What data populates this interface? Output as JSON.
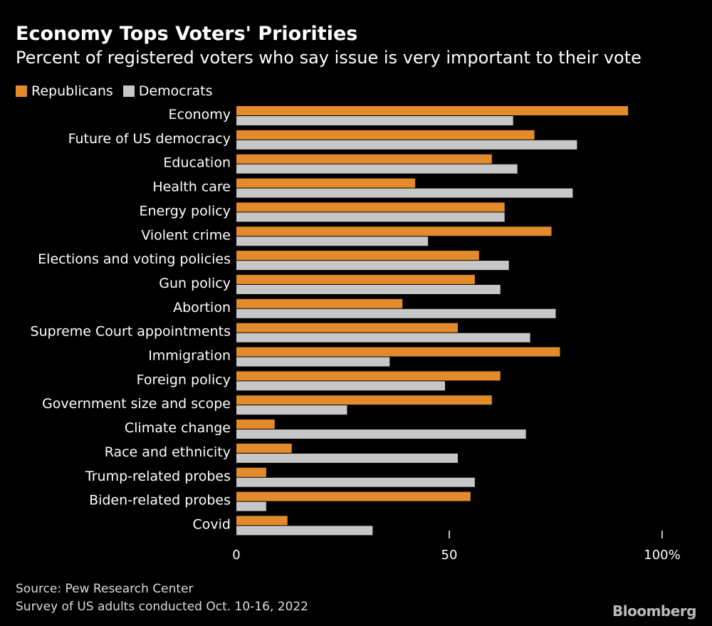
{
  "header": {
    "title": "Economy Tops Voters' Priorities",
    "subtitle": "Percent of registered voters who say issue is very important to their vote"
  },
  "colors": {
    "republicans": "#e38a2b",
    "democrats": "#c7c7c7",
    "background": "#000000",
    "text": "#ffffff"
  },
  "footer": {
    "source": "Source: Pew Research Center",
    "note": "Survey of US adults conducted Oct. 10-16, 2022",
    "brand": "Bloomberg"
  },
  "chart_data": {
    "type": "bar",
    "orientation": "horizontal",
    "title": "Economy Tops Voters' Priorities",
    "subtitle": "Percent of registered voters who say issue is very important to their vote",
    "xlabel": "",
    "ylabel": "",
    "xlim": [
      0,
      100
    ],
    "ticks": [
      {
        "value": 0,
        "label": "0"
      },
      {
        "value": 50,
        "label": "50"
      },
      {
        "value": 100,
        "label": "100%"
      }
    ],
    "grid": false,
    "legend_position": "top-left",
    "categories": [
      "Economy",
      "Future of US democracy",
      "Education",
      "Health care",
      "Energy policy",
      "Violent crime",
      "Elections and voting policies",
      "Gun policy",
      "Abortion",
      "Supreme Court appointments",
      "Immigration",
      "Foreign policy",
      "Government size and scope",
      "Climate change",
      "Race and ethnicity",
      "Trump-related probes",
      "Biden-related probes",
      "Covid"
    ],
    "series": [
      {
        "name": "Republicans",
        "color": "#e38a2b",
        "values": [
          92,
          70,
          60,
          42,
          63,
          74,
          57,
          56,
          39,
          52,
          76,
          62,
          60,
          9,
          13,
          7,
          55,
          12
        ]
      },
      {
        "name": "Democrats",
        "color": "#c7c7c7",
        "values": [
          65,
          80,
          66,
          79,
          63,
          45,
          64,
          62,
          75,
          69,
          36,
          49,
          26,
          68,
          52,
          56,
          7,
          32
        ]
      }
    ]
  }
}
